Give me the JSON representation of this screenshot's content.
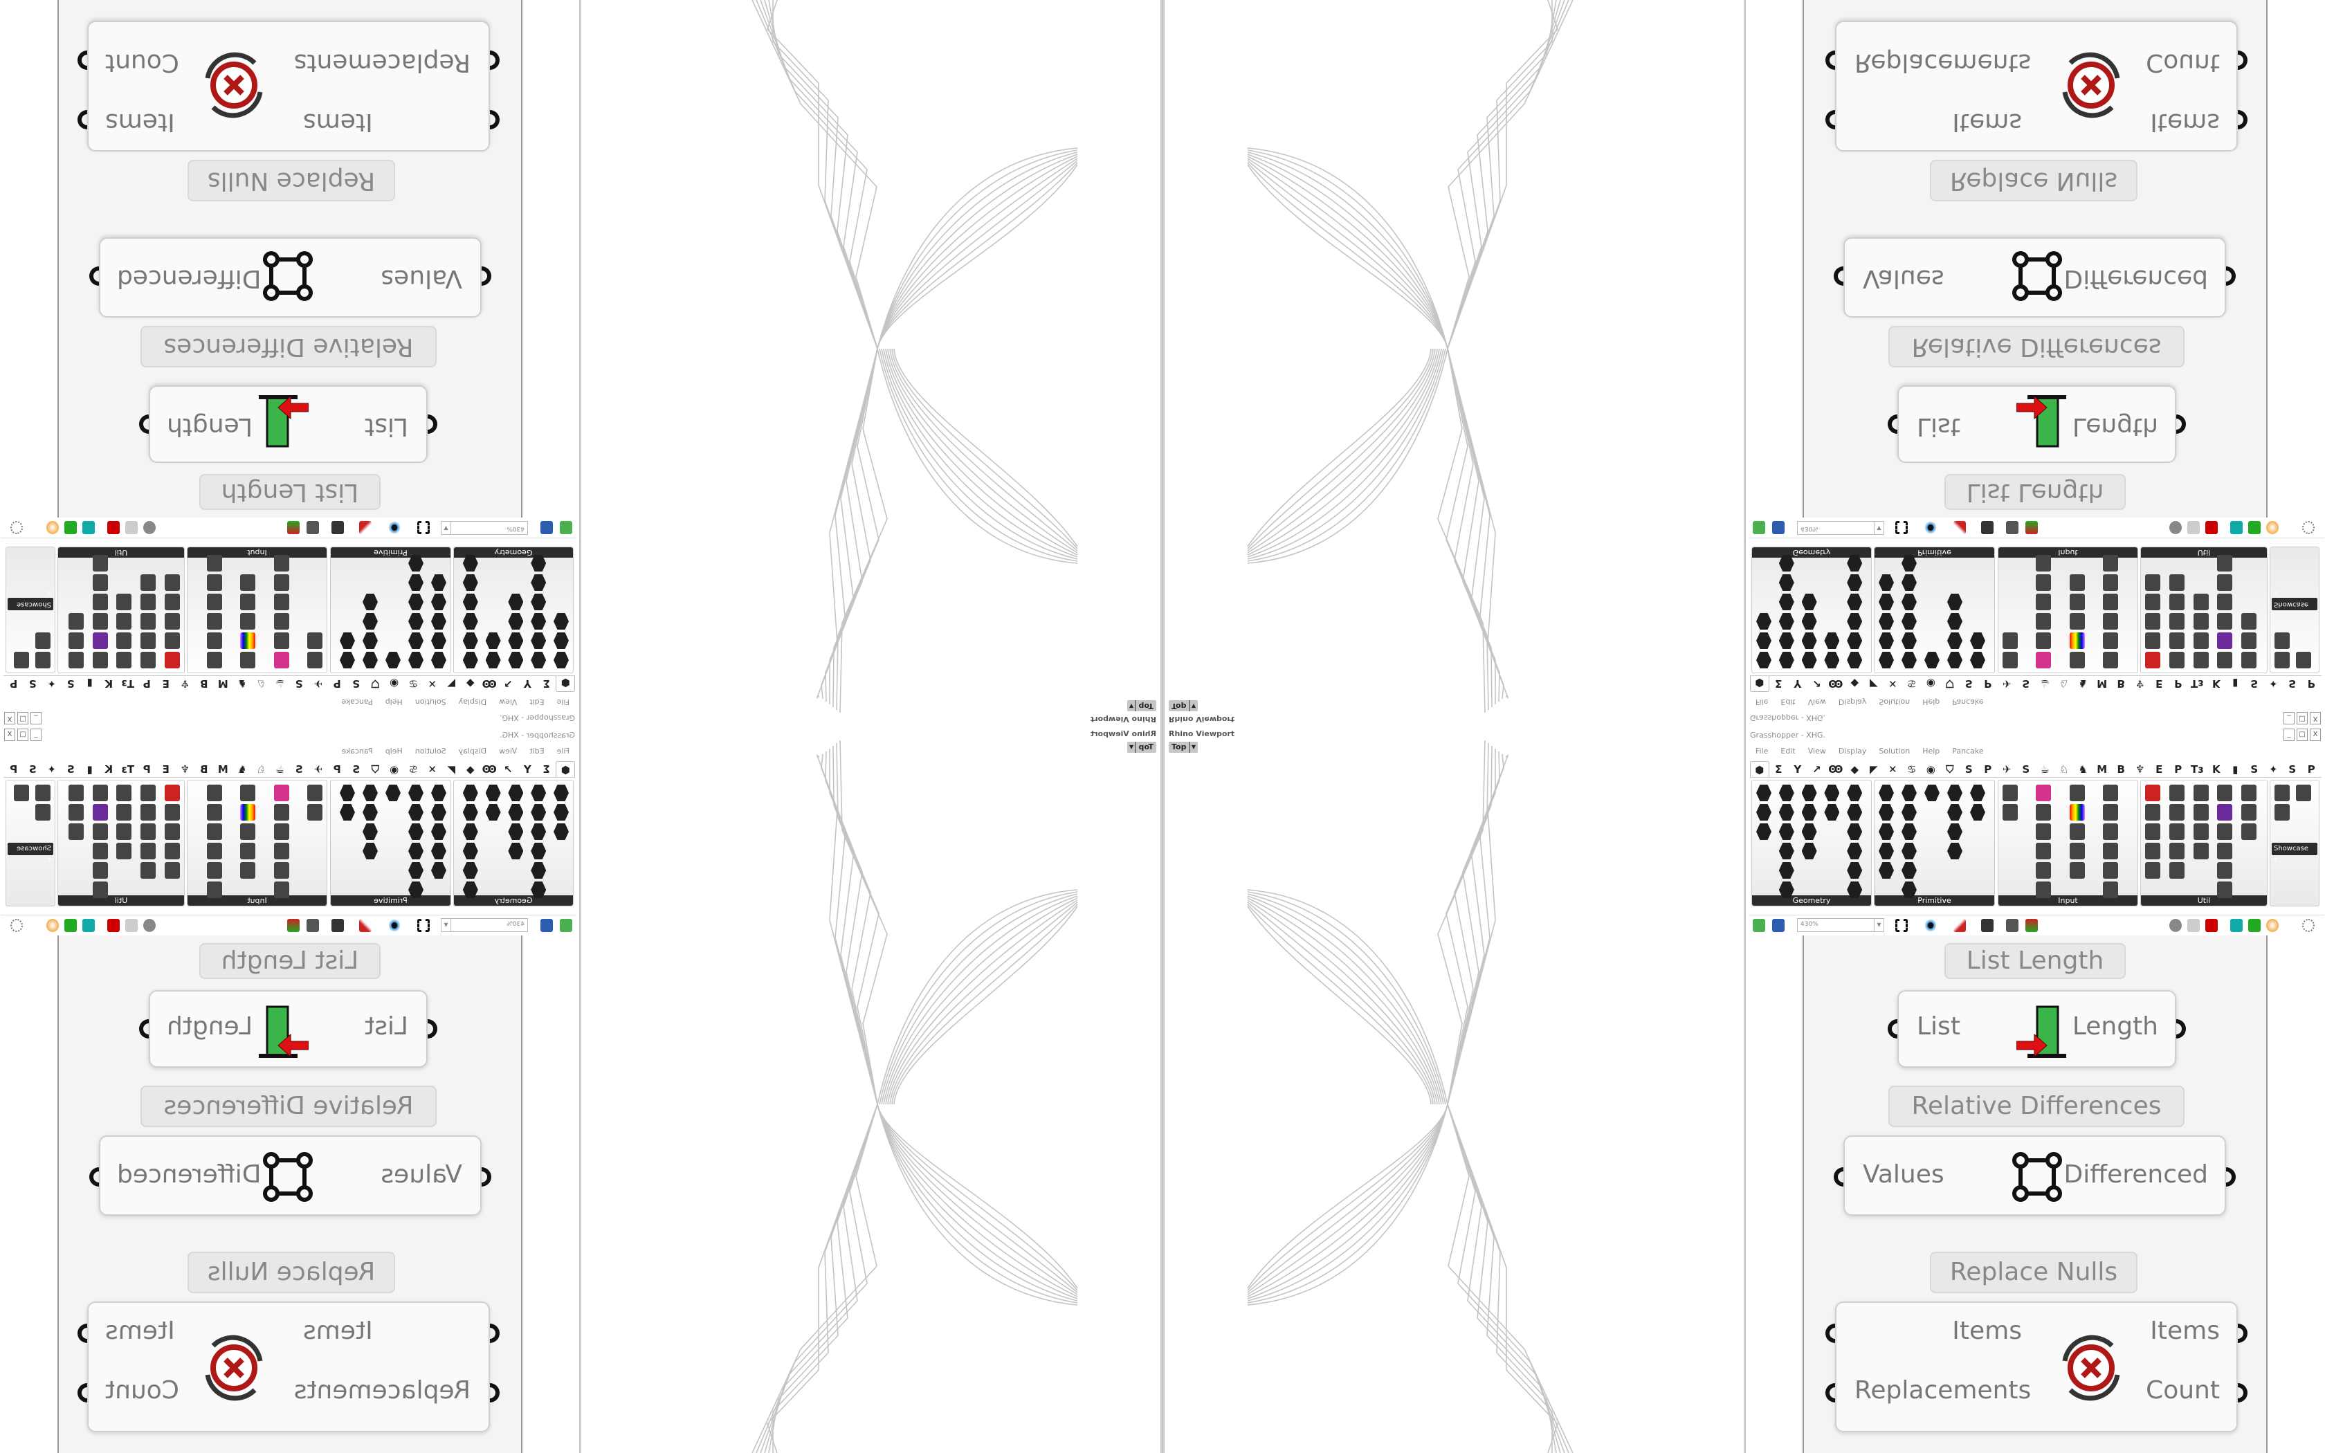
{
  "viewport": {
    "title": "Rhino Viewport",
    "view_button": "Top"
  },
  "grasshopper": {
    "title": "Grasshopper - XHG.",
    "window_buttons": [
      "_",
      "□",
      "X"
    ],
    "menu": [
      "File",
      "Edit",
      "View",
      "Display",
      "Solution",
      "Help",
      "Pancake"
    ],
    "tabs": [
      "⬢",
      "Σ",
      "Y",
      "↗",
      "Ꙭ",
      "◆",
      "◤",
      "✕",
      "♋",
      "◉",
      "⛉",
      "S",
      "P",
      "✈",
      "S",
      "☕",
      "♘",
      "♞",
      "M",
      "B",
      "♆",
      "E",
      "P",
      "Tɜ",
      "K",
      "▮",
      "S",
      "✦",
      "S",
      "P"
    ],
    "panels": [
      "Geometry",
      "Primitive",
      "Input",
      "Util"
    ],
    "showcase_label": "Showcase T...",
    "zoom_level": "430%",
    "canvas": {
      "labels": {
        "list_length": "List Length",
        "relative_differences": "Relative Differences",
        "replace_nulls": "Replace Nulls"
      },
      "list_length": {
        "input": "List",
        "output": "Length"
      },
      "relative_differences": {
        "input": "Values",
        "output": "Differenced"
      },
      "replace_nulls": {
        "inputs": [
          "Items",
          "Replacements"
        ],
        "outputs": [
          "Items",
          "Count"
        ]
      }
    }
  },
  "colors": {
    "panel_label_bg": "#2c2c2c",
    "grip": "#111111",
    "replace_icon": "#b01818",
    "list_icon_green": "#39b54a"
  }
}
